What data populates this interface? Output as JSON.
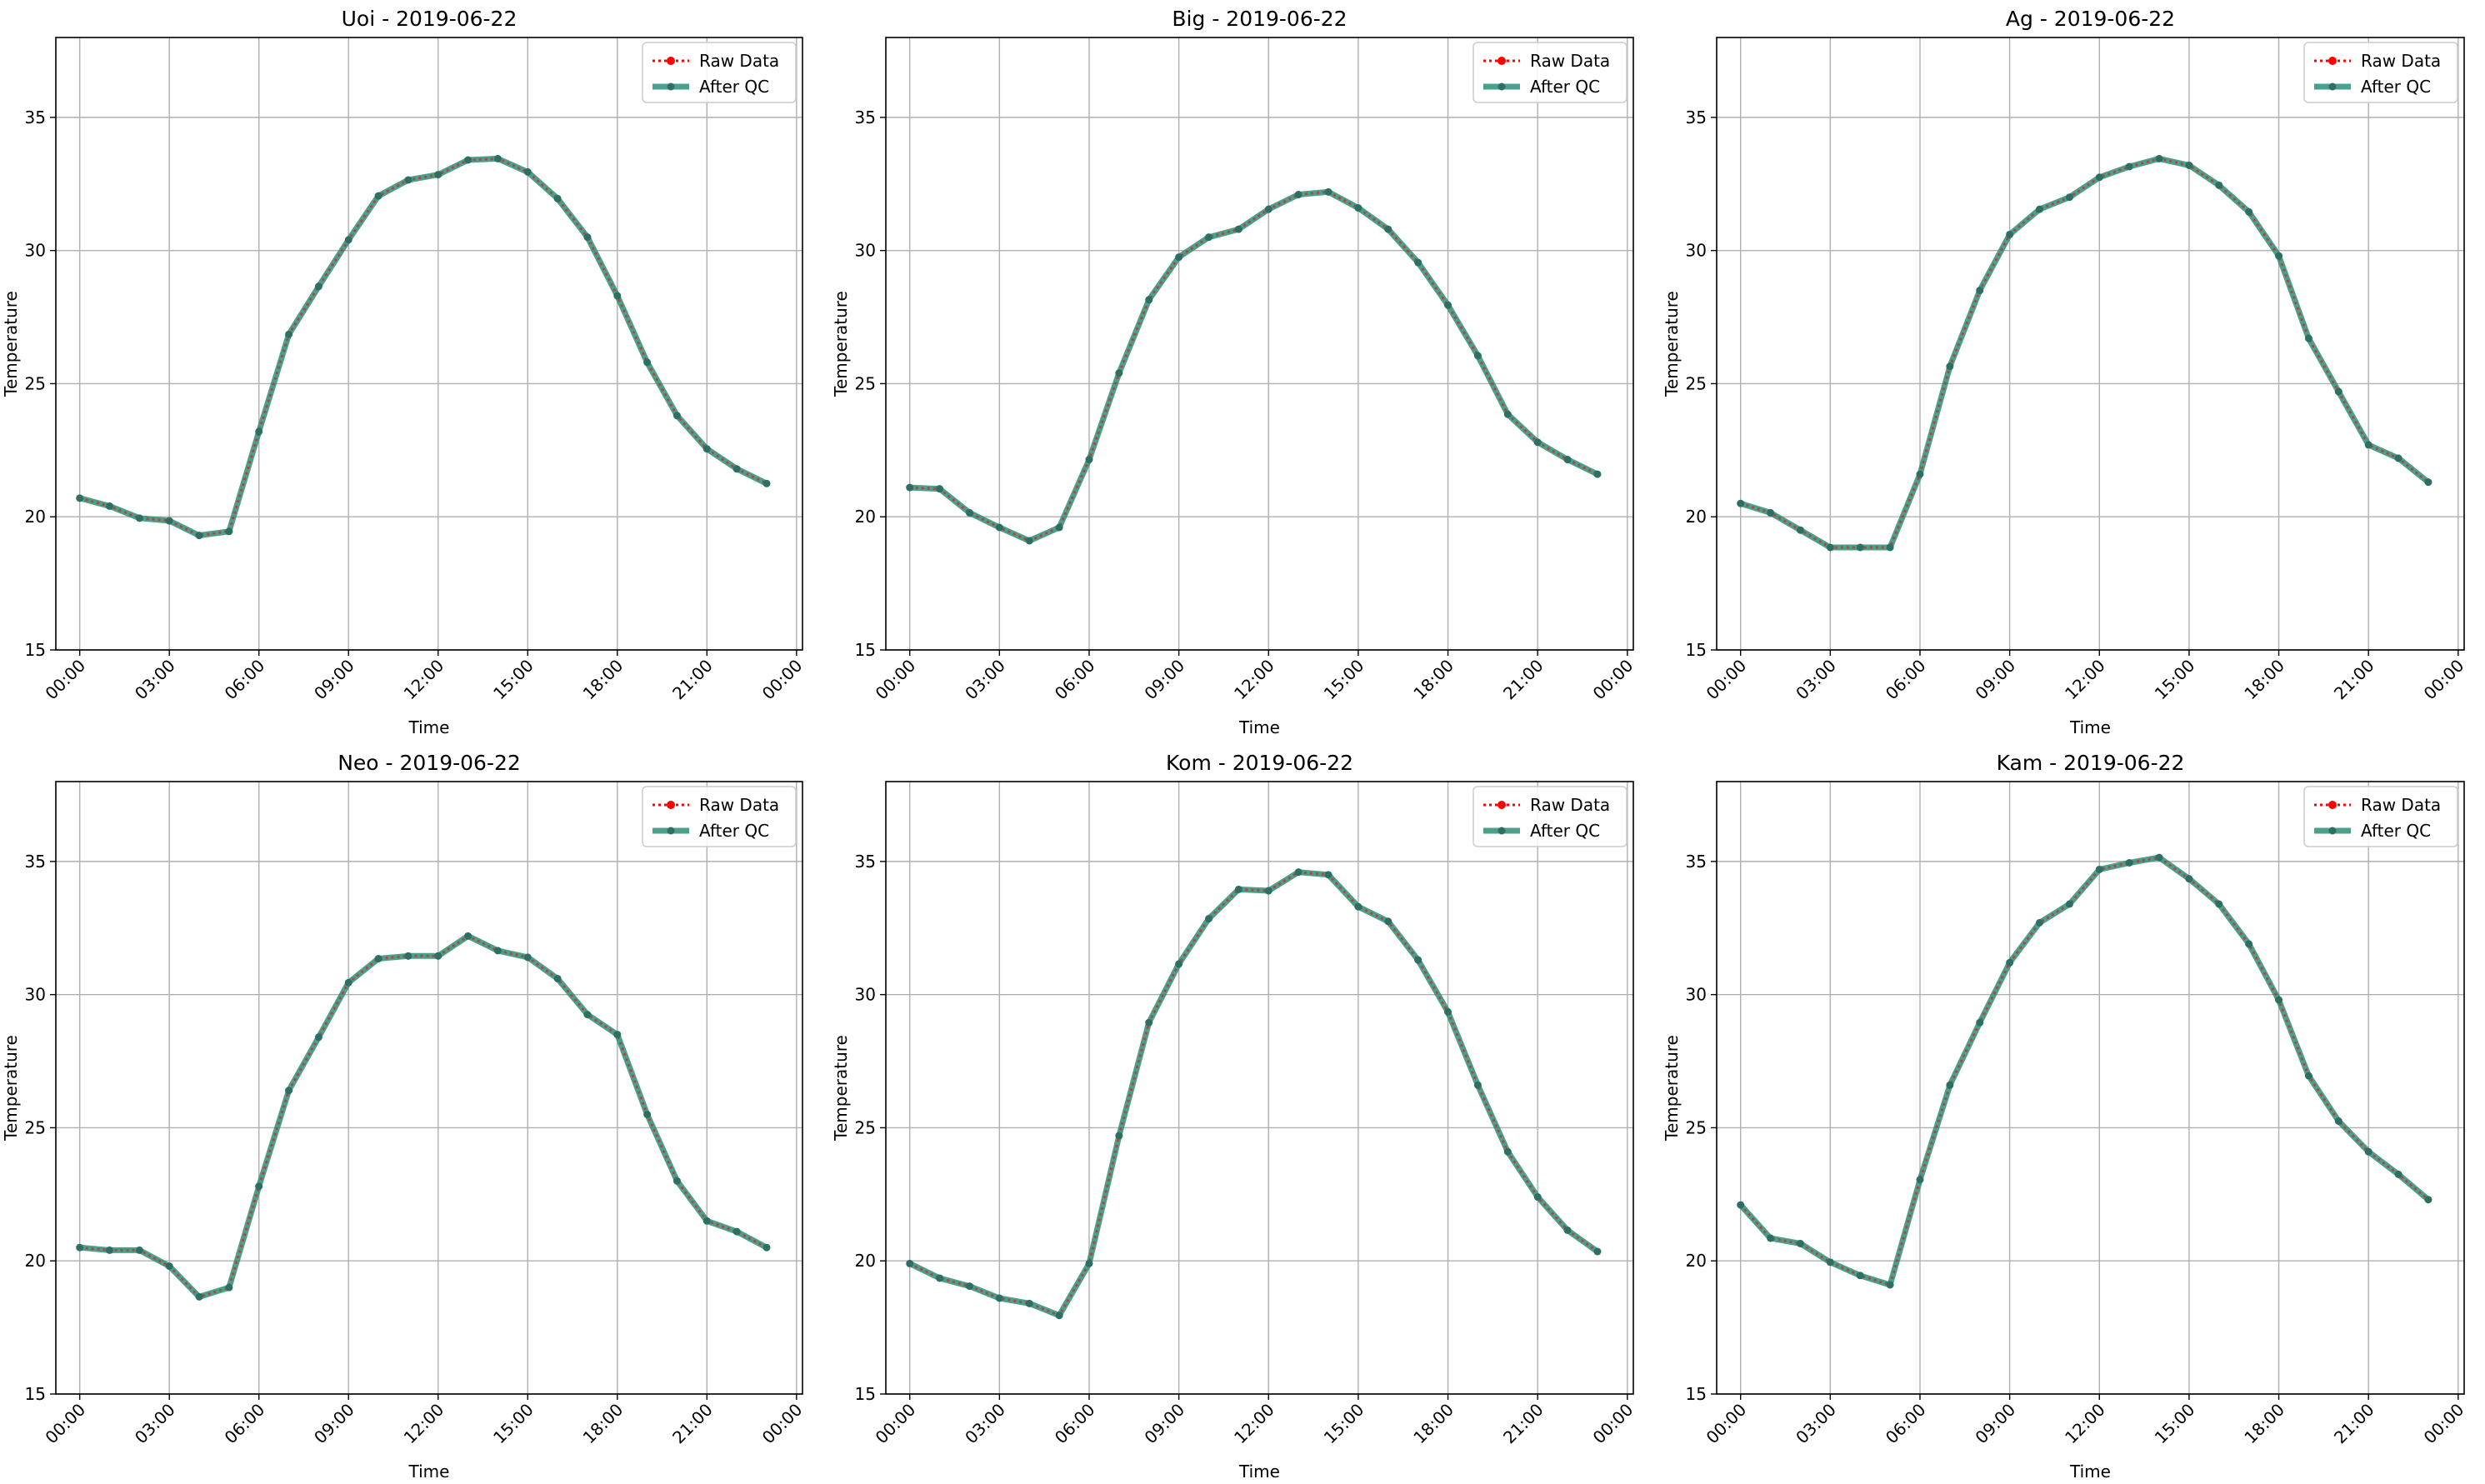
{
  "colors": {
    "raw": "#ff0000",
    "qc": "#2b8f77",
    "marker": "#2f6f63",
    "grid": "#b0b0b0",
    "axes": "#000000"
  },
  "chart_data": [
    {
      "type": "line",
      "title": "Uoi - 2019-06-22",
      "xlabel": "Time",
      "ylabel": "Temperature",
      "ylim": [
        15,
        38
      ],
      "yticks": [
        15,
        20,
        25,
        30,
        35
      ],
      "xlim": [
        -0.8,
        24.2
      ],
      "xtick_hours": [
        0,
        3,
        6,
        9,
        12,
        15,
        18,
        21,
        24
      ],
      "xtick_labels": [
        "00:00",
        "03:00",
        "06:00",
        "09:00",
        "12:00",
        "15:00",
        "18:00",
        "21:00",
        "00:00"
      ],
      "grid": true,
      "legend": "top-right",
      "series": [
        {
          "name": "Raw Data",
          "style": "dotted-red-markers",
          "x": [
            0,
            1,
            2,
            3,
            4,
            5,
            6,
            7,
            8,
            9,
            10,
            11,
            12,
            13,
            14,
            15,
            16,
            17,
            18,
            19,
            20,
            21,
            22,
            23
          ],
          "values": [
            20.7,
            20.4,
            19.95,
            19.85,
            19.3,
            19.45,
            23.2,
            26.85,
            28.65,
            30.4,
            32.05,
            32.65,
            32.85,
            33.4,
            33.45,
            32.95,
            31.95,
            30.5,
            28.3,
            25.8,
            23.8,
            22.55,
            21.8,
            21.25
          ]
        },
        {
          "name": "After QC",
          "style": "solid-green-markers",
          "x": [
            0,
            1,
            2,
            3,
            4,
            5,
            6,
            7,
            8,
            9,
            10,
            11,
            12,
            13,
            14,
            15,
            16,
            17,
            18,
            19,
            20,
            21,
            22,
            23
          ],
          "values": [
            20.7,
            20.4,
            19.95,
            19.85,
            19.3,
            19.45,
            23.2,
            26.85,
            28.65,
            30.4,
            32.05,
            32.65,
            32.85,
            33.4,
            33.45,
            32.95,
            31.95,
            30.5,
            28.3,
            25.8,
            23.8,
            22.55,
            21.8,
            21.25
          ]
        }
      ]
    },
    {
      "type": "line",
      "title": "Big - 2019-06-22",
      "xlabel": "Time",
      "ylabel": "Temperature",
      "ylim": [
        15,
        38
      ],
      "yticks": [
        15,
        20,
        25,
        30,
        35
      ],
      "xlim": [
        -0.8,
        24.2
      ],
      "xtick_hours": [
        0,
        3,
        6,
        9,
        12,
        15,
        18,
        21,
        24
      ],
      "xtick_labels": [
        "00:00",
        "03:00",
        "06:00",
        "09:00",
        "12:00",
        "15:00",
        "18:00",
        "21:00",
        "00:00"
      ],
      "grid": true,
      "legend": "top-right",
      "series": [
        {
          "name": "Raw Data",
          "style": "dotted-red-markers",
          "x": [
            0,
            1,
            2,
            3,
            4,
            5,
            6,
            7,
            8,
            9,
            10,
            11,
            12,
            13,
            14,
            15,
            16,
            17,
            18,
            19,
            20,
            21,
            22,
            23
          ],
          "values": [
            21.1,
            21.05,
            20.15,
            19.6,
            19.1,
            19.6,
            22.15,
            25.4,
            28.15,
            29.75,
            30.5,
            30.8,
            31.55,
            32.1,
            32.2,
            31.6,
            30.8,
            29.55,
            27.95,
            26.05,
            23.85,
            22.8,
            22.15,
            21.6
          ]
        },
        {
          "name": "After QC",
          "style": "solid-green-markers",
          "x": [
            0,
            1,
            2,
            3,
            4,
            5,
            6,
            7,
            8,
            9,
            10,
            11,
            12,
            13,
            14,
            15,
            16,
            17,
            18,
            19,
            20,
            21,
            22,
            23
          ],
          "values": [
            21.1,
            21.05,
            20.15,
            19.6,
            19.1,
            19.6,
            22.15,
            25.4,
            28.15,
            29.75,
            30.5,
            30.8,
            31.55,
            32.1,
            32.2,
            31.6,
            30.8,
            29.55,
            27.95,
            26.05,
            23.85,
            22.8,
            22.15,
            21.6
          ]
        }
      ]
    },
    {
      "type": "line",
      "title": "Ag - 2019-06-22",
      "xlabel": "Time",
      "ylabel": "Temperature",
      "ylim": [
        15,
        38
      ],
      "yticks": [
        15,
        20,
        25,
        30,
        35
      ],
      "xlim": [
        -0.8,
        24.2
      ],
      "xtick_hours": [
        0,
        3,
        6,
        9,
        12,
        15,
        18,
        21,
        24
      ],
      "xtick_labels": [
        "00:00",
        "03:00",
        "06:00",
        "09:00",
        "12:00",
        "15:00",
        "18:00",
        "21:00",
        "00:00"
      ],
      "grid": true,
      "legend": "top-right",
      "series": [
        {
          "name": "Raw Data",
          "style": "dotted-red-markers",
          "x": [
            0,
            1,
            2,
            3,
            4,
            5,
            6,
            7,
            8,
            9,
            10,
            11,
            12,
            13,
            14,
            15,
            16,
            17,
            18,
            19,
            20,
            21,
            22,
            23
          ],
          "values": [
            20.5,
            20.15,
            19.5,
            18.85,
            18.85,
            18.85,
            21.6,
            25.65,
            28.5,
            30.6,
            31.55,
            32.0,
            32.75,
            33.15,
            33.45,
            33.2,
            32.45,
            31.45,
            29.8,
            26.7,
            24.7,
            22.7,
            22.2,
            21.3
          ]
        },
        {
          "name": "After QC",
          "style": "solid-green-markers",
          "x": [
            0,
            1,
            2,
            3,
            4,
            5,
            6,
            7,
            8,
            9,
            10,
            11,
            12,
            13,
            14,
            15,
            16,
            17,
            18,
            19,
            20,
            21,
            22,
            23
          ],
          "values": [
            20.5,
            20.15,
            19.5,
            18.85,
            18.85,
            18.85,
            21.6,
            25.65,
            28.5,
            30.6,
            31.55,
            32.0,
            32.75,
            33.15,
            33.45,
            33.2,
            32.45,
            31.45,
            29.8,
            26.7,
            24.7,
            22.7,
            22.2,
            21.3
          ]
        }
      ]
    },
    {
      "type": "line",
      "title": "Neo - 2019-06-22",
      "xlabel": "Time",
      "ylabel": "Temperature",
      "ylim": [
        15,
        38
      ],
      "yticks": [
        15,
        20,
        25,
        30,
        35
      ],
      "xlim": [
        -0.8,
        24.2
      ],
      "xtick_hours": [
        0,
        3,
        6,
        9,
        12,
        15,
        18,
        21,
        24
      ],
      "xtick_labels": [
        "00:00",
        "03:00",
        "06:00",
        "09:00",
        "12:00",
        "15:00",
        "18:00",
        "21:00",
        "00:00"
      ],
      "grid": true,
      "legend": "top-right",
      "series": [
        {
          "name": "Raw Data",
          "style": "dotted-red-markers",
          "x": [
            0,
            1,
            2,
            3,
            4,
            5,
            6,
            7,
            8,
            9,
            10,
            11,
            12,
            13,
            14,
            15,
            16,
            17,
            18,
            19,
            20,
            21,
            22,
            23
          ],
          "values": [
            20.5,
            20.4,
            20.4,
            19.8,
            18.65,
            19.0,
            22.8,
            26.4,
            28.4,
            30.45,
            31.35,
            31.45,
            31.45,
            32.2,
            31.65,
            31.4,
            30.6,
            29.25,
            28.5,
            25.5,
            23.0,
            21.5,
            21.1,
            20.5
          ]
        },
        {
          "name": "After QC",
          "style": "solid-green-markers",
          "x": [
            0,
            1,
            2,
            3,
            4,
            5,
            6,
            7,
            8,
            9,
            10,
            11,
            12,
            13,
            14,
            15,
            16,
            17,
            18,
            19,
            20,
            21,
            22,
            23
          ],
          "values": [
            20.5,
            20.4,
            20.4,
            19.8,
            18.65,
            19.0,
            22.8,
            26.4,
            28.4,
            30.45,
            31.35,
            31.45,
            31.45,
            32.2,
            31.65,
            31.4,
            30.6,
            29.25,
            28.5,
            25.5,
            23.0,
            21.5,
            21.1,
            20.5
          ]
        }
      ]
    },
    {
      "type": "line",
      "title": "Kom - 2019-06-22",
      "xlabel": "Time",
      "ylabel": "Temperature",
      "ylim": [
        15,
        38
      ],
      "yticks": [
        15,
        20,
        25,
        30,
        35
      ],
      "xlim": [
        -0.8,
        24.2
      ],
      "xtick_hours": [
        0,
        3,
        6,
        9,
        12,
        15,
        18,
        21,
        24
      ],
      "xtick_labels": [
        "00:00",
        "03:00",
        "06:00",
        "09:00",
        "12:00",
        "15:00",
        "18:00",
        "21:00",
        "00:00"
      ],
      "grid": true,
      "legend": "top-right",
      "series": [
        {
          "name": "Raw Data",
          "style": "dotted-red-markers",
          "x": [
            0,
            1,
            2,
            3,
            4,
            5,
            6,
            7,
            8,
            9,
            10,
            11,
            12,
            13,
            14,
            15,
            16,
            17,
            18,
            19,
            20,
            21,
            22,
            23
          ],
          "values": [
            19.9,
            19.35,
            19.05,
            18.6,
            18.4,
            17.95,
            19.9,
            24.7,
            28.95,
            31.15,
            32.85,
            33.95,
            33.9,
            34.6,
            34.5,
            33.3,
            32.75,
            31.3,
            29.35,
            26.6,
            24.1,
            22.4,
            21.15,
            20.35
          ]
        },
        {
          "name": "After QC",
          "style": "solid-green-markers",
          "x": [
            0,
            1,
            2,
            3,
            4,
            5,
            6,
            7,
            8,
            9,
            10,
            11,
            12,
            13,
            14,
            15,
            16,
            17,
            18,
            19,
            20,
            21,
            22,
            23
          ],
          "values": [
            19.9,
            19.35,
            19.05,
            18.6,
            18.4,
            17.95,
            19.9,
            24.7,
            28.95,
            31.15,
            32.85,
            33.95,
            33.9,
            34.6,
            34.5,
            33.3,
            32.75,
            31.3,
            29.35,
            26.6,
            24.1,
            22.4,
            21.15,
            20.35
          ]
        }
      ]
    },
    {
      "type": "line",
      "title": "Kam - 2019-06-22",
      "xlabel": "Time",
      "ylabel": "Temperature",
      "ylim": [
        15,
        38
      ],
      "yticks": [
        15,
        20,
        25,
        30,
        35
      ],
      "xlim": [
        -0.8,
        24.2
      ],
      "xtick_hours": [
        0,
        3,
        6,
        9,
        12,
        15,
        18,
        21,
        24
      ],
      "xtick_labels": [
        "00:00",
        "03:00",
        "06:00",
        "09:00",
        "12:00",
        "15:00",
        "18:00",
        "21:00",
        "00:00"
      ],
      "grid": true,
      "legend": "top-right",
      "series": [
        {
          "name": "Raw Data",
          "style": "dotted-red-markers",
          "x": [
            0,
            1,
            2,
            3,
            4,
            5,
            6,
            7,
            8,
            9,
            10,
            11,
            12,
            13,
            14,
            15,
            16,
            17,
            18,
            19,
            20,
            21,
            22,
            23
          ],
          "values": [
            22.1,
            20.85,
            20.65,
            19.95,
            19.45,
            19.1,
            23.05,
            26.6,
            28.95,
            31.2,
            32.7,
            33.4,
            34.7,
            34.95,
            35.15,
            34.35,
            33.4,
            31.9,
            29.8,
            26.95,
            25.25,
            24.1,
            23.25,
            22.3
          ]
        },
        {
          "name": "After QC",
          "style": "solid-green-markers",
          "x": [
            0,
            1,
            2,
            3,
            4,
            5,
            6,
            7,
            8,
            9,
            10,
            11,
            12,
            13,
            14,
            15,
            16,
            17,
            18,
            19,
            20,
            21,
            22,
            23
          ],
          "values": [
            22.1,
            20.85,
            20.65,
            19.95,
            19.45,
            19.1,
            23.05,
            26.6,
            28.95,
            31.2,
            32.7,
            33.4,
            34.7,
            34.95,
            35.15,
            34.35,
            33.4,
            31.9,
            29.8,
            26.95,
            25.25,
            24.1,
            23.25,
            22.3
          ]
        }
      ]
    }
  ]
}
